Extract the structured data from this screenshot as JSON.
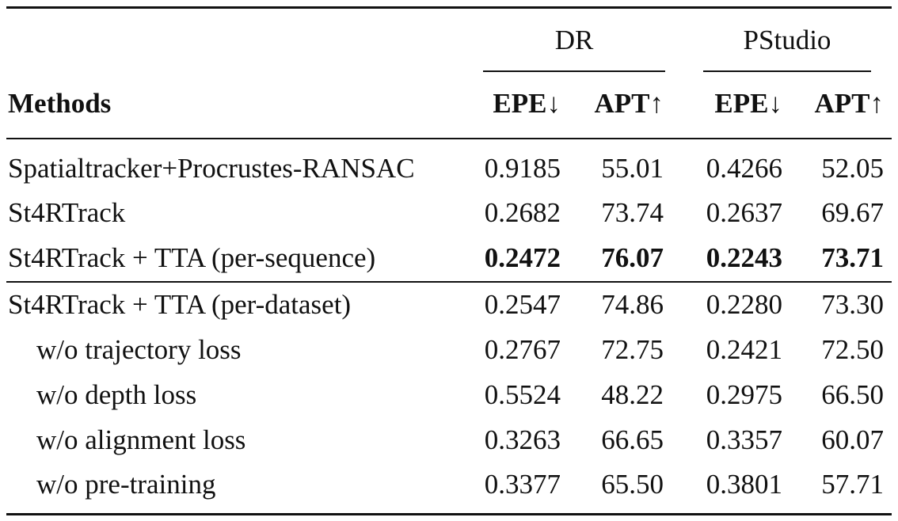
{
  "table": {
    "group_headers": [
      "DR",
      "PStudio"
    ],
    "col_header_method": "Methods",
    "sub_headers": [
      "EPE↓",
      "APT↑",
      "EPE↓",
      "APT↑"
    ],
    "rows": [
      {
        "method": "Spatialtracker+Procrustes-RANSAC",
        "values": [
          "0.9185",
          "55.01",
          "0.4266",
          "52.05"
        ],
        "bold": false,
        "indent": false
      },
      {
        "method": "St4RTrack",
        "values": [
          "0.2682",
          "73.74",
          "0.2637",
          "69.67"
        ],
        "bold": false,
        "indent": false
      },
      {
        "method": "St4RTrack + TTA (per-sequence)",
        "values": [
          "0.2472",
          "76.07",
          "0.2243",
          "73.71"
        ],
        "bold": true,
        "indent": false
      },
      {
        "method": "St4RTrack + TTA (per-dataset)",
        "values": [
          "0.2547",
          "74.86",
          "0.2280",
          "73.30"
        ],
        "bold": false,
        "indent": false
      },
      {
        "method": "w/o trajectory loss",
        "values": [
          "0.2767",
          "72.75",
          "0.2421",
          "72.50"
        ],
        "bold": false,
        "indent": true
      },
      {
        "method": "w/o depth loss",
        "values": [
          "0.5524",
          "48.22",
          "0.2975",
          "66.50"
        ],
        "bold": false,
        "indent": true
      },
      {
        "method": "w/o alignment loss",
        "values": [
          "0.3263",
          "66.65",
          "0.3357",
          "60.07"
        ],
        "bold": false,
        "indent": true
      },
      {
        "method": "w/o pre-training",
        "values": [
          "0.3377",
          "65.50",
          "0.3801",
          "57.71"
        ],
        "bold": false,
        "indent": true
      }
    ]
  }
}
